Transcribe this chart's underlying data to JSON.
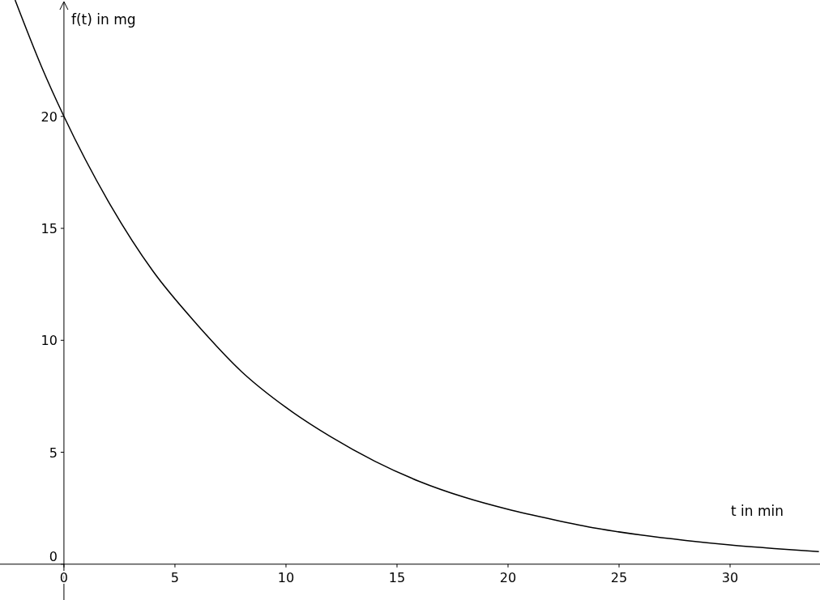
{
  "chart_data": {
    "type": "line",
    "xlabel": "t  in min",
    "ylabel": "f(t)  in mg",
    "x": [
      -2.2,
      -1,
      0,
      2,
      4,
      6,
      8,
      10,
      12,
      14,
      16,
      18,
      20,
      22,
      24,
      26,
      28,
      30,
      32,
      34
    ],
    "values": [
      25.2,
      22.2,
      20,
      16.2,
      13.1,
      10.7,
      8.6,
      7.0,
      5.7,
      4.6,
      3.7,
      3.0,
      2.45,
      2.0,
      1.6,
      1.3,
      1.06,
      0.86,
      0.7,
      0.56
    ],
    "color": "#000000",
    "xlim": [
      -2.88,
      34.05
    ],
    "ylim": [
      -1.6,
      25.2
    ],
    "xticks": [
      0,
      5,
      10,
      15,
      20,
      25,
      30
    ],
    "yticks": [
      0,
      5,
      10,
      15,
      20
    ],
    "grid": false,
    "line_style": "solid"
  }
}
